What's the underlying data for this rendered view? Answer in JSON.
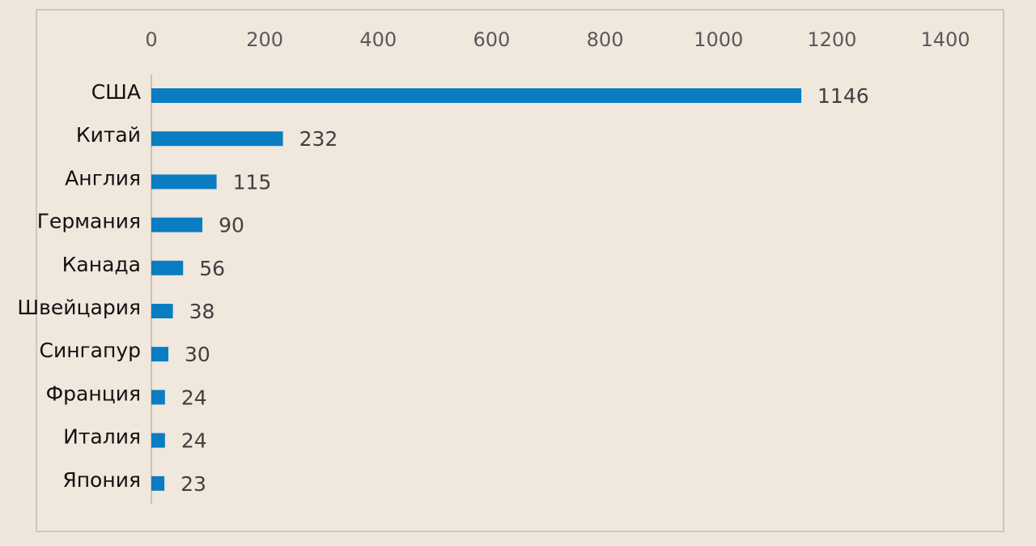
{
  "chart_data": {
    "type": "bar",
    "orientation": "horizontal",
    "categories": [
      "США",
      "Китай",
      "Англия",
      "Германия",
      "Канада",
      "Швейцария",
      "Сингапур",
      "Франция",
      "Италия",
      "Япония"
    ],
    "values": [
      1146,
      232,
      115,
      90,
      56,
      38,
      30,
      24,
      24,
      23
    ],
    "color": "#0a7dc2",
    "xlim": [
      0,
      1400
    ],
    "xticks": [
      0,
      200,
      400,
      600,
      800,
      1000,
      1200,
      1400
    ],
    "grid": false,
    "data_labels": true
  }
}
